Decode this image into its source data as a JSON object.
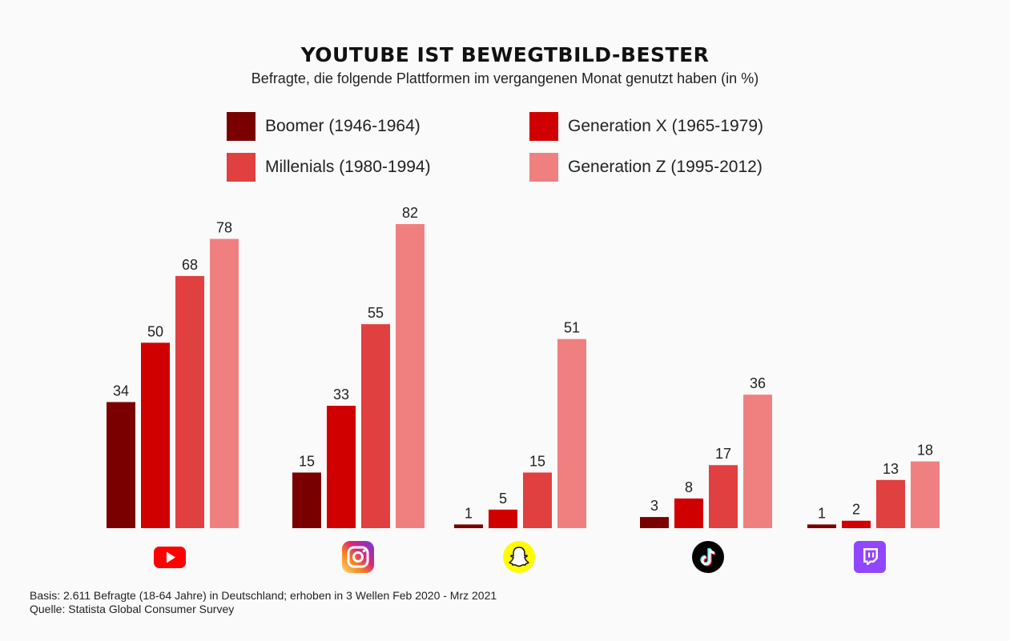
{
  "header": {
    "title": "YOUTUBE IST BEWEGTBILD-BESTER",
    "subtitle": "Befragte, die folgende Plattformen im vergangenen Monat genutzt haben (in %)"
  },
  "legend": [
    {
      "label": "Boomer (1946-1964)",
      "color": "#7a0000"
    },
    {
      "label": "Generation X (1965-1979)",
      "color": "#d10000"
    },
    {
      "label": "Millenials (1980-1994)",
      "color": "#e04040"
    },
    {
      "label": "Generation Z (1995-2012)",
      "color": "#f08080"
    }
  ],
  "chart_data": {
    "type": "bar",
    "categories": [
      "YouTube",
      "Instagram",
      "Snapchat",
      "TikTok",
      "Twitch"
    ],
    "category_icons": [
      "youtube-icon",
      "instagram-icon",
      "snapchat-icon",
      "tiktok-icon",
      "twitch-icon"
    ],
    "series": [
      {
        "name": "Boomer (1946-1964)",
        "color": "#7a0000",
        "values": [
          34,
          15,
          1,
          3,
          1
        ]
      },
      {
        "name": "Generation X (1965-1979)",
        "color": "#d10000",
        "values": [
          50,
          33,
          5,
          8,
          2
        ]
      },
      {
        "name": "Millenials (1980-1994)",
        "color": "#e04040",
        "values": [
          68,
          55,
          15,
          17,
          13
        ]
      },
      {
        "name": "Generation Z (1995-2012)",
        "color": "#f08080",
        "values": [
          78,
          82,
          51,
          36,
          18
        ]
      }
    ],
    "title": "YOUTUBE IST BEWEGTBILD-BESTER",
    "subtitle": "Befragte, die folgende Plattformen im vergangenen Monat genutzt haben (in %)",
    "ylim": [
      0,
      82
    ],
    "grid": false,
    "legend_position": "top"
  },
  "footer": {
    "basis": "Basis: 2.611 Befragte (18-64 Jahre) in Deutschland; erhoben in 3 Wellen Feb 2020 - Mrz 2021",
    "source": "Quelle: Statista Global Consumer Survey"
  }
}
